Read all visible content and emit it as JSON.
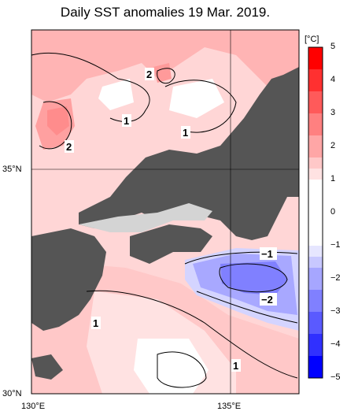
{
  "title": "Daily SST anomalies 19 Mar. 2019.",
  "axes": {
    "lat_labels": [
      "35°N",
      "30°N"
    ],
    "lon_labels": [
      "130°E",
      "135°E"
    ]
  },
  "colorbar": {
    "unit": "[°C]",
    "ticks": [
      "5",
      "4",
      "3",
      "2",
      "1",
      "0",
      "−1",
      "−2",
      "−3",
      "−4",
      "−5"
    ],
    "colors_top_to_bottom": [
      "#ff0000",
      "#ff3030",
      "#ff5a5a",
      "#ff8080",
      "#ffa6a6",
      "#ffc8c8",
      "#ffe2e2",
      "#ffffff",
      "#e6e6ff",
      "#c8c8ff",
      "#a6a6ff",
      "#8080ff",
      "#5a5aff",
      "#3030ff",
      "#0000ff"
    ]
  },
  "contour_labels": [
    "2",
    "1",
    "1",
    "2",
    "1",
    "−1",
    "−2",
    "1"
  ],
  "colors": {
    "land": "#555555",
    "lake_shallow": "#d4d4d4",
    "warm1": "#ffd6d6",
    "warm2": "#ffb4b4",
    "warm3": "#ff8c8c",
    "neutral": "#ffffff",
    "cool1": "#d4d4ff",
    "cool2": "#a8a8ff",
    "cool3": "#8080ff"
  }
}
